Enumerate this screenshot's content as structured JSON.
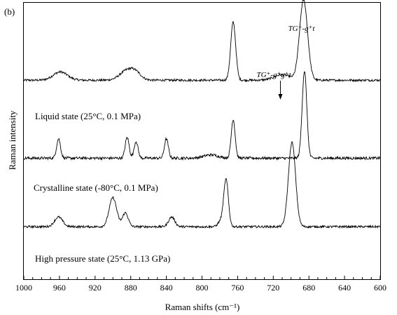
{
  "chart_data": {
    "type": "line",
    "panel_label": "(b)",
    "xlabel": "Raman shifts (cm⁻¹)",
    "ylabel": "Raman intensity",
    "xlim": [
      1000,
      600
    ],
    "x_reversed": true,
    "ylim": [
      0,
      1.0
    ],
    "y_ticks_shown": false,
    "grid": false,
    "x_ticks": [
      1000,
      960,
      920,
      880,
      840,
      800,
      760,
      720,
      680,
      640,
      600
    ],
    "series": [
      {
        "name": "Liquid state (25°C, 0.1 MPa)",
        "baseline": 0.72,
        "noise": 0.004,
        "peaks": [
          {
            "x": 959,
            "height": 0.03,
            "width": 8
          },
          {
            "x": 884,
            "height": 0.035,
            "width": 8
          },
          {
            "x": 874,
            "height": 0.02,
            "width": 6
          },
          {
            "x": 765,
            "height": 0.21,
            "width": 2.8
          },
          {
            "x": 710,
            "height": 0.02,
            "width": 9
          },
          {
            "x": 686,
            "height": 0.29,
            "width": 4.5
          }
        ]
      },
      {
        "name": "Crystalline state (-80°C, 0.1 MPa)",
        "baseline": 0.438,
        "noise": 0.005,
        "peaks": [
          {
            "x": 961,
            "height": 0.07,
            "width": 2.2
          },
          {
            "x": 884,
            "height": 0.075,
            "width": 2.2
          },
          {
            "x": 874,
            "height": 0.06,
            "width": 2.2
          },
          {
            "x": 840,
            "height": 0.07,
            "width": 2.2
          },
          {
            "x": 790,
            "height": 0.012,
            "width": 8
          },
          {
            "x": 765,
            "height": 0.14,
            "width": 2.2
          },
          {
            "x": 685,
            "height": 0.315,
            "width": 2.6
          }
        ]
      },
      {
        "name": "High pressure state (25°C, 1.13 GPa)",
        "baseline": 0.19,
        "noise": 0.004,
        "peaks": [
          {
            "x": 961,
            "height": 0.035,
            "width": 4.5
          },
          {
            "x": 900,
            "height": 0.105,
            "width": 4.2
          },
          {
            "x": 886,
            "height": 0.05,
            "width": 3.2
          },
          {
            "x": 834,
            "height": 0.035,
            "width": 3.5
          },
          {
            "x": 773,
            "height": 0.17,
            "width": 2.6
          },
          {
            "x": 779,
            "height": 0.02,
            "width": 3
          },
          {
            "x": 699,
            "height": 0.305,
            "width": 4.0
          }
        ]
      }
    ],
    "annotations": [
      {
        "text": "TG⁺-g⁺t",
        "x": 686,
        "role": "peak-label"
      },
      {
        "text": "TG⁺-g⁺g⁺t",
        "x": 712,
        "role": "peak-label-with-arrow"
      }
    ]
  }
}
